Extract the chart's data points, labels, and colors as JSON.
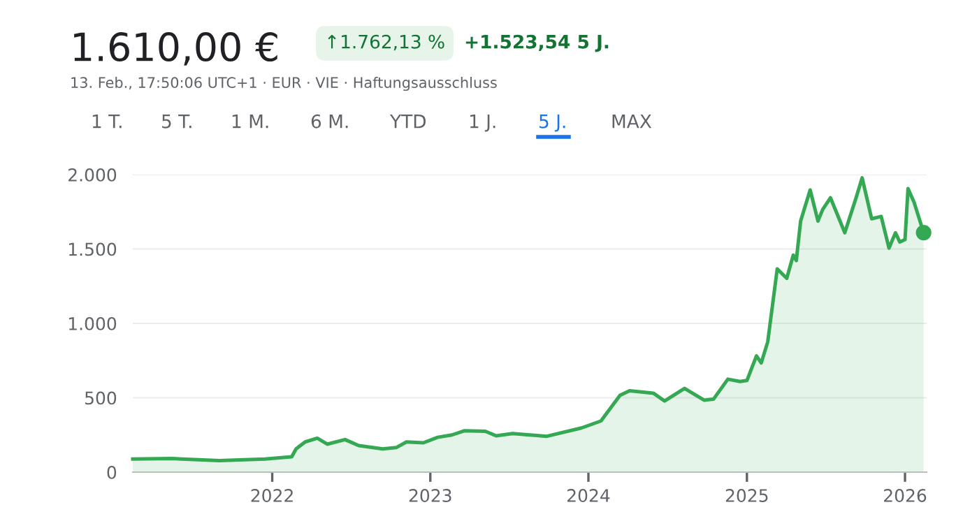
{
  "chart_data": {
    "type": "area",
    "title": "1.610,00 €",
    "subtitle": "13. Feb., 17:50:06 UTC+1 · EUR · VIE · Haftungsausschluss",
    "annotations": [
      "↑1.762,13 %",
      "+1.523,54 5 J.",
      "1 T.",
      "5 T.",
      "1 M.",
      "6 M.",
      "YTD",
      "1 J.",
      "5 J.",
      "MAX"
    ],
    "x": [
      "2021-02-13",
      "2021-05-15",
      "2021-09-01",
      "2021-12-15",
      "2022-02-15",
      "2022-02-25",
      "2022-03-18",
      "2022-04-15",
      "2022-05-08",
      "2022-06-18",
      "2022-07-20",
      "2022-09-13",
      "2022-10-15",
      "2022-11-07",
      "2022-12-16",
      "2023-01-18",
      "2023-02-20",
      "2023-03-20",
      "2023-05-08",
      "2023-06-02",
      "2023-07-10",
      "2023-09-27",
      "2023-12-16",
      "2024-01-30",
      "2024-03-14",
      "2024-04-05",
      "2024-05-30",
      "2024-06-25",
      "2024-08-10",
      "2024-09-24",
      "2024-10-16",
      "2024-11-18",
      "2024-12-16",
      "2025-01-01",
      "2025-01-23",
      "2025-02-03",
      "2025-02-18",
      "2025-03-12",
      "2025-04-03",
      "2025-04-18",
      "2025-04-25",
      "2025-05-05",
      "2025-05-27",
      "2025-06-14",
      "2025-06-25",
      "2025-07-13",
      "2025-08-15",
      "2025-09-10",
      "2025-09-24",
      "2025-10-16",
      "2025-11-07",
      "2025-11-25",
      "2025-12-10",
      "2025-12-20",
      "2026-01-01",
      "2026-01-08",
      "2026-01-22",
      "2026-02-13"
    ],
    "series": [
      {
        "color": "#34a853",
        "values": [
          88,
          91,
          78,
          88,
          103,
          156,
          203,
          228,
          188,
          219,
          178,
          156,
          166,
          203,
          197,
          234,
          250,
          278,
          275,
          244,
          259,
          241,
          297,
          344,
          516,
          547,
          531,
          478,
          563,
          484,
          491,
          625,
          609,
          616,
          781,
          734,
          875,
          1366,
          1303,
          1459,
          1422,
          1688,
          1897,
          1688,
          1766,
          1844,
          1609,
          1844,
          1978,
          1703,
          1719,
          1506,
          1609,
          1547,
          1563,
          1906,
          1813,
          1610
        ]
      }
    ],
    "xlim": [
      "2021-02-13",
      "2026-02-20"
    ],
    "xticks": [
      {
        "value": "2022-01-01",
        "label": "2022"
      },
      {
        "value": "2023-01-01",
        "label": "2023"
      },
      {
        "value": "2024-01-01",
        "label": "2024"
      },
      {
        "value": "2025-01-01",
        "label": "2025"
      },
      {
        "value": "2026-01-01",
        "label": "2026"
      }
    ],
    "ylim": [
      0,
      2000
    ],
    "yticks": [
      0,
      {
        "value": 500,
        "label": "500"
      },
      {
        "value": 1000,
        "label": "1.000"
      },
      {
        "value": 1500,
        "label": "1.500"
      },
      {
        "value": 2000,
        "label": "2.000"
      }
    ],
    "grid": "y",
    "legend": false,
    "marker": "none",
    "line_style": "solid"
  }
}
